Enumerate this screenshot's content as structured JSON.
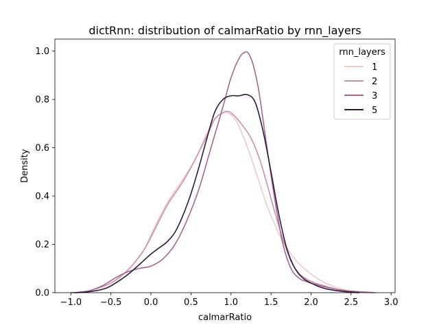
{
  "chart_data": {
    "type": "line",
    "title": "dictRnn: distribution of calmarRatio by rnn_layers",
    "xlabel": "calmarRatio",
    "ylabel": "Density",
    "xlim": [
      -1.2,
      3.05
    ],
    "ylim": [
      0.0,
      1.05
    ],
    "xticks": [
      -1.0,
      -0.5,
      0.0,
      0.5,
      1.0,
      1.5,
      2.0,
      2.5,
      3.0
    ],
    "xtick_labels": [
      "−1.0",
      "−0.5",
      "0.0",
      "0.5",
      "1.0",
      "1.5",
      "2.0",
      "2.5",
      "3.0"
    ],
    "yticks": [
      0.0,
      0.2,
      0.4,
      0.6,
      0.8,
      1.0
    ],
    "ytick_labels": [
      "0.0",
      "0.2",
      "0.4",
      "0.6",
      "0.8",
      "1.0"
    ],
    "grid": false,
    "legend": {
      "title": "rnn_layers",
      "placement": "top-right"
    },
    "series": [
      {
        "name": "1",
        "color": "#ebcac6",
        "x": [
          -0.95,
          -0.75,
          -0.5,
          -0.3,
          -0.1,
          0.0,
          0.2,
          0.4,
          0.55,
          0.7,
          0.8,
          0.9,
          0.95,
          1.05,
          1.15,
          1.25,
          1.35,
          1.45,
          1.55,
          1.65,
          1.75,
          1.85,
          1.95,
          2.05,
          2.15,
          2.25,
          2.35,
          2.45,
          2.55
        ],
        "values": [
          0.0,
          0.01,
          0.04,
          0.09,
          0.17,
          0.24,
          0.37,
          0.47,
          0.55,
          0.66,
          0.72,
          0.745,
          0.745,
          0.72,
          0.65,
          0.56,
          0.46,
          0.36,
          0.28,
          0.21,
          0.16,
          0.12,
          0.09,
          0.065,
          0.045,
          0.03,
          0.018,
          0.008,
          0.0
        ]
      },
      {
        "name": "2",
        "color": "#cc8fa8",
        "x": [
          -0.95,
          -0.75,
          -0.5,
          -0.3,
          -0.1,
          0.0,
          0.2,
          0.4,
          0.55,
          0.7,
          0.8,
          0.9,
          0.97,
          1.05,
          1.15,
          1.25,
          1.35,
          1.45,
          1.55,
          1.65,
          1.75,
          1.85,
          1.95,
          2.05,
          2.15,
          2.25,
          2.35,
          2.45,
          2.55
        ],
        "values": [
          0.0,
          0.01,
          0.04,
          0.09,
          0.17,
          0.23,
          0.36,
          0.46,
          0.55,
          0.65,
          0.72,
          0.745,
          0.75,
          0.73,
          0.69,
          0.64,
          0.56,
          0.45,
          0.33,
          0.22,
          0.13,
          0.08,
          0.055,
          0.04,
          0.03,
          0.02,
          0.012,
          0.005,
          0.0
        ]
      },
      {
        "name": "3",
        "color": "#a6658f",
        "x": [
          -1.0,
          -0.8,
          -0.6,
          -0.45,
          -0.3,
          -0.15,
          0.0,
          0.15,
          0.3,
          0.45,
          0.6,
          0.75,
          0.9,
          1.0,
          1.1,
          1.17,
          1.22,
          1.28,
          1.35,
          1.45,
          1.55,
          1.65,
          1.75,
          1.85,
          1.95,
          2.05,
          2.2,
          2.4,
          2.6,
          2.8
        ],
        "values": [
          0.0,
          0.005,
          0.03,
          0.06,
          0.085,
          0.1,
          0.11,
          0.14,
          0.2,
          0.3,
          0.43,
          0.6,
          0.77,
          0.89,
          0.97,
          0.995,
          0.99,
          0.94,
          0.83,
          0.6,
          0.38,
          0.2,
          0.1,
          0.06,
          0.045,
          0.035,
          0.022,
          0.01,
          0.004,
          0.0
        ]
      },
      {
        "name": "5",
        "color": "#2b1a3c",
        "x": [
          -0.95,
          -0.75,
          -0.55,
          -0.35,
          -0.2,
          -0.1,
          0.0,
          0.1,
          0.2,
          0.3,
          0.4,
          0.5,
          0.6,
          0.7,
          0.8,
          0.9,
          1.0,
          1.1,
          1.2,
          1.3,
          1.4,
          1.5,
          1.6,
          1.7,
          1.8,
          1.9,
          2.0,
          2.1,
          2.2,
          2.4,
          2.6
        ],
        "values": [
          0.0,
          0.005,
          0.02,
          0.06,
          0.1,
          0.13,
          0.16,
          0.185,
          0.21,
          0.25,
          0.32,
          0.41,
          0.52,
          0.64,
          0.75,
          0.8,
          0.815,
          0.815,
          0.82,
          0.79,
          0.67,
          0.5,
          0.32,
          0.18,
          0.1,
          0.06,
          0.04,
          0.025,
          0.015,
          0.005,
          0.0
        ]
      }
    ]
  }
}
